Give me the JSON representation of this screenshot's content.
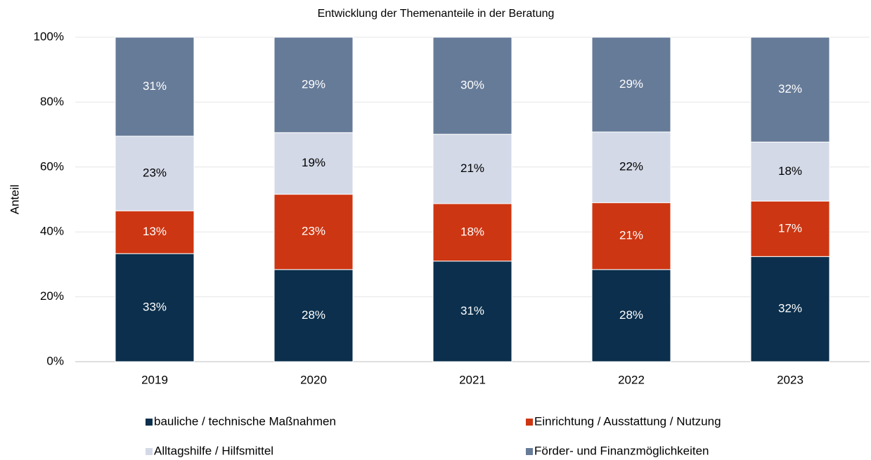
{
  "chart_data": {
    "type": "stacked_bar",
    "title": "Entwicklung der Themenanteile in der Beratung",
    "y_label": "Anteil",
    "categories": [
      "2019",
      "2020",
      "2021",
      "2022",
      "2023"
    ],
    "series": [
      {
        "name": "bauliche / technische Maßnahmen",
        "color": "#0b2f4c",
        "values": [
          33.3,
          28.4,
          31.0,
          28.4,
          32.4
        ],
        "value_labels": [
          "33%",
          "28%",
          "31%",
          "28%",
          "32%"
        ]
      },
      {
        "name": "Einrichtung / Ausstattung / Nutzung",
        "color": "#cd3612",
        "values": [
          13.2,
          23.2,
          17.7,
          20.6,
          17.1
        ],
        "value_labels": [
          "13%",
          "23%",
          "18%",
          "21%",
          "17%"
        ]
      },
      {
        "name": "Alltagshilfe / Hilfsmittel",
        "color": "#d3d9e7",
        "values": [
          23.0,
          19.0,
          21.4,
          21.8,
          18.2
        ],
        "value_labels": [
          "23%",
          "19%",
          "21%",
          "22%",
          "18%"
        ]
      },
      {
        "name": "Förder- und Finanzmöglichkeiten",
        "color": "#667b98",
        "values": [
          30.5,
          29.4,
          29.9,
          29.2,
          32.3
        ],
        "value_labels": [
          "31%",
          "29%",
          "30%",
          "29%",
          "32%"
        ]
      }
    ],
    "ylim": [
      0,
      100
    ],
    "yticks": [
      {
        "value": 0,
        "label": "0%"
      },
      {
        "value": 20,
        "label": "20%"
      },
      {
        "value": 40,
        "label": "40%"
      },
      {
        "value": 60,
        "label": "60%"
      },
      {
        "value": 80,
        "label": "80%"
      },
      {
        "value": 100,
        "label": "100%"
      }
    ],
    "grid": true,
    "legend": "bottom"
  }
}
